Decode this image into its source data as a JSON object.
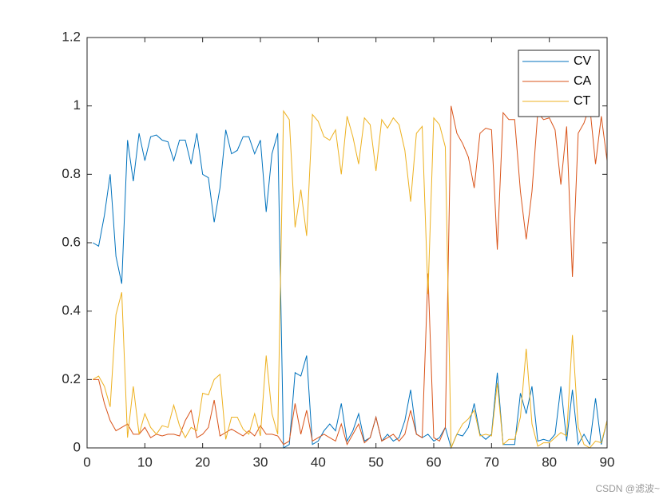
{
  "chart_data": {
    "type": "line",
    "x": [
      1,
      2,
      3,
      4,
      5,
      6,
      7,
      8,
      9,
      10,
      11,
      12,
      13,
      14,
      15,
      16,
      17,
      18,
      19,
      20,
      21,
      22,
      23,
      24,
      25,
      26,
      27,
      28,
      29,
      30,
      31,
      32,
      33,
      34,
      35,
      36,
      37,
      38,
      39,
      40,
      41,
      42,
      43,
      44,
      45,
      46,
      47,
      48,
      49,
      50,
      51,
      52,
      53,
      54,
      55,
      56,
      57,
      58,
      59,
      60,
      61,
      62,
      63,
      64,
      65,
      66,
      67,
      68,
      69,
      70,
      71,
      72,
      73,
      74,
      75,
      76,
      77,
      78,
      79,
      80,
      81,
      82,
      83,
      84,
      85,
      86,
      87,
      88,
      89,
      90
    ],
    "series": [
      {
        "name": "CV",
        "color": "#0072BD",
        "values": [
          0.6,
          0.59,
          0.68,
          0.8,
          0.56,
          0.48,
          0.9,
          0.78,
          0.92,
          0.84,
          0.91,
          0.915,
          0.9,
          0.895,
          0.84,
          0.9,
          0.9,
          0.83,
          0.92,
          0.8,
          0.79,
          0.66,
          0.76,
          0.93,
          0.86,
          0.87,
          0.91,
          0.91,
          0.86,
          0.9,
          0.69,
          0.86,
          0.92,
          0.0,
          0.01,
          0.22,
          0.21,
          0.27,
          0.01,
          0.02,
          0.05,
          0.07,
          0.05,
          0.13,
          0.02,
          0.05,
          0.1,
          0.02,
          0.03,
          0.09,
          0.02,
          0.04,
          0.02,
          0.03,
          0.08,
          0.17,
          0.04,
          0.03,
          0.04,
          0.02,
          0.03,
          0.06,
          0.0,
          0.04,
          0.035,
          0.06,
          0.13,
          0.04,
          0.025,
          0.04,
          0.22,
          0.01,
          0.01,
          0.01,
          0.16,
          0.1,
          0.18,
          0.02,
          0.025,
          0.02,
          0.04,
          0.18,
          0.02,
          0.17,
          0.01,
          0.04,
          0.01,
          0.145,
          0.01,
          0.08
        ]
      },
      {
        "name": "CA",
        "color": "#D95319",
        "values": [
          0.2,
          0.2,
          0.13,
          0.08,
          0.05,
          0.06,
          0.07,
          0.04,
          0.04,
          0.06,
          0.03,
          0.04,
          0.035,
          0.04,
          0.04,
          0.035,
          0.08,
          0.11,
          0.03,
          0.04,
          0.06,
          0.14,
          0.035,
          0.045,
          0.055,
          0.045,
          0.035,
          0.05,
          0.035,
          0.065,
          0.04,
          0.04,
          0.035,
          0.01,
          0.02,
          0.13,
          0.04,
          0.11,
          0.02,
          0.03,
          0.04,
          0.03,
          0.02,
          0.07,
          0.01,
          0.04,
          0.07,
          0.015,
          0.03,
          0.09,
          0.02,
          0.03,
          0.04,
          0.02,
          0.04,
          0.11,
          0.04,
          0.03,
          0.51,
          0.03,
          0.02,
          0.06,
          1.0,
          0.92,
          0.89,
          0.85,
          0.76,
          0.92,
          0.935,
          0.93,
          0.58,
          0.98,
          0.96,
          0.96,
          0.75,
          0.61,
          0.75,
          0.98,
          0.96,
          0.965,
          0.93,
          0.77,
          0.94,
          0.5,
          0.92,
          0.95,
          1.0,
          0.83,
          0.97,
          0.84
        ]
      },
      {
        "name": "CT",
        "color": "#EDB120",
        "values": [
          0.2,
          0.21,
          0.18,
          0.12,
          0.39,
          0.455,
          0.03,
          0.18,
          0.04,
          0.1,
          0.06,
          0.04,
          0.065,
          0.06,
          0.125,
          0.065,
          0.03,
          0.06,
          0.05,
          0.16,
          0.155,
          0.2,
          0.215,
          0.025,
          0.09,
          0.09,
          0.055,
          0.04,
          0.1,
          0.035,
          0.27,
          0.1,
          0.04,
          0.985,
          0.96,
          0.645,
          0.755,
          0.62,
          0.975,
          0.955,
          0.91,
          0.9,
          0.93,
          0.8,
          0.97,
          0.91,
          0.83,
          0.965,
          0.945,
          0.81,
          0.96,
          0.935,
          0.965,
          0.945,
          0.87,
          0.72,
          0.92,
          0.94,
          0.45,
          0.965,
          0.945,
          0.88,
          0.0,
          0.04,
          0.07,
          0.085,
          0.11,
          0.035,
          0.04,
          0.035,
          0.19,
          0.01,
          0.025,
          0.025,
          0.09,
          0.29,
          0.07,
          0.005,
          0.015,
          0.015,
          0.03,
          0.045,
          0.035,
          0.33,
          0.06,
          0.01,
          0.0,
          0.02,
          0.015,
          0.08
        ]
      }
    ],
    "xlim": [
      0,
      90
    ],
    "xticks": [
      0,
      10,
      20,
      30,
      40,
      50,
      60,
      70,
      80,
      90
    ],
    "ylim": [
      0,
      1.2
    ],
    "yticks": [
      0,
      0.2,
      0.4,
      0.6,
      0.8,
      1,
      1.2
    ],
    "legend": "northeast",
    "box": true
  },
  "watermark": "CSDN @滤波~"
}
